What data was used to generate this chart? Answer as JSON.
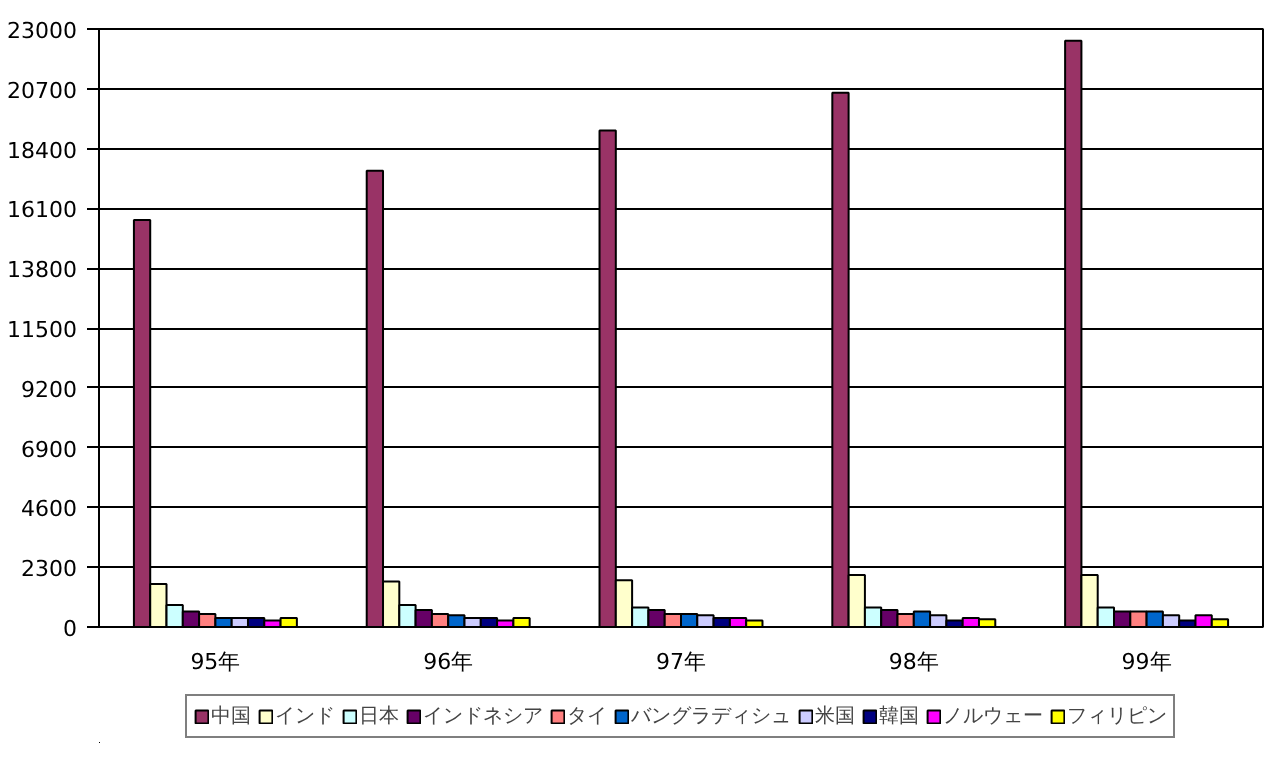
{
  "chart_data": {
    "type": "bar",
    "categories": [
      "95年",
      "96年",
      "97年",
      "98年",
      "99年"
    ],
    "ylim": [
      0,
      23000
    ],
    "yticks": [
      0,
      2300,
      4600,
      6900,
      9200,
      11500,
      13800,
      16100,
      18400,
      20700,
      23000
    ],
    "grid": "y",
    "legend": "bottom",
    "series": [
      {
        "name": "中国",
        "color": "#993366",
        "values": [
          15650,
          17550,
          19100,
          20550,
          22550
        ]
      },
      {
        "name": "インド",
        "color": "#ffffcc",
        "values": [
          1650,
          1750,
          1800,
          2000,
          2000
        ]
      },
      {
        "name": "日本",
        "color": "#ccffff",
        "values": [
          850,
          850,
          750,
          750,
          750
        ]
      },
      {
        "name": "インドネシア",
        "color": "#660066",
        "values": [
          600,
          650,
          650,
          650,
          600
        ]
      },
      {
        "name": "タイ",
        "color": "#ff8080",
        "values": [
          500,
          500,
          500,
          500,
          600
        ]
      },
      {
        "name": "バングラディシュ",
        "color": "#0066cc",
        "values": [
          350,
          450,
          500,
          600,
          600
        ]
      },
      {
        "name": "米国",
        "color": "#ccccff",
        "values": [
          350,
          350,
          450,
          450,
          450
        ]
      },
      {
        "name": "韓国",
        "color": "#000080",
        "values": [
          350,
          350,
          350,
          250,
          250
        ]
      },
      {
        "name": "ノルウェー",
        "color": "#ff00ff",
        "values": [
          250,
          250,
          350,
          350,
          450
        ]
      },
      {
        "name": "フィリピン",
        "color": "#ffff00",
        "values": [
          350,
          350,
          250,
          300,
          300
        ]
      }
    ]
  }
}
